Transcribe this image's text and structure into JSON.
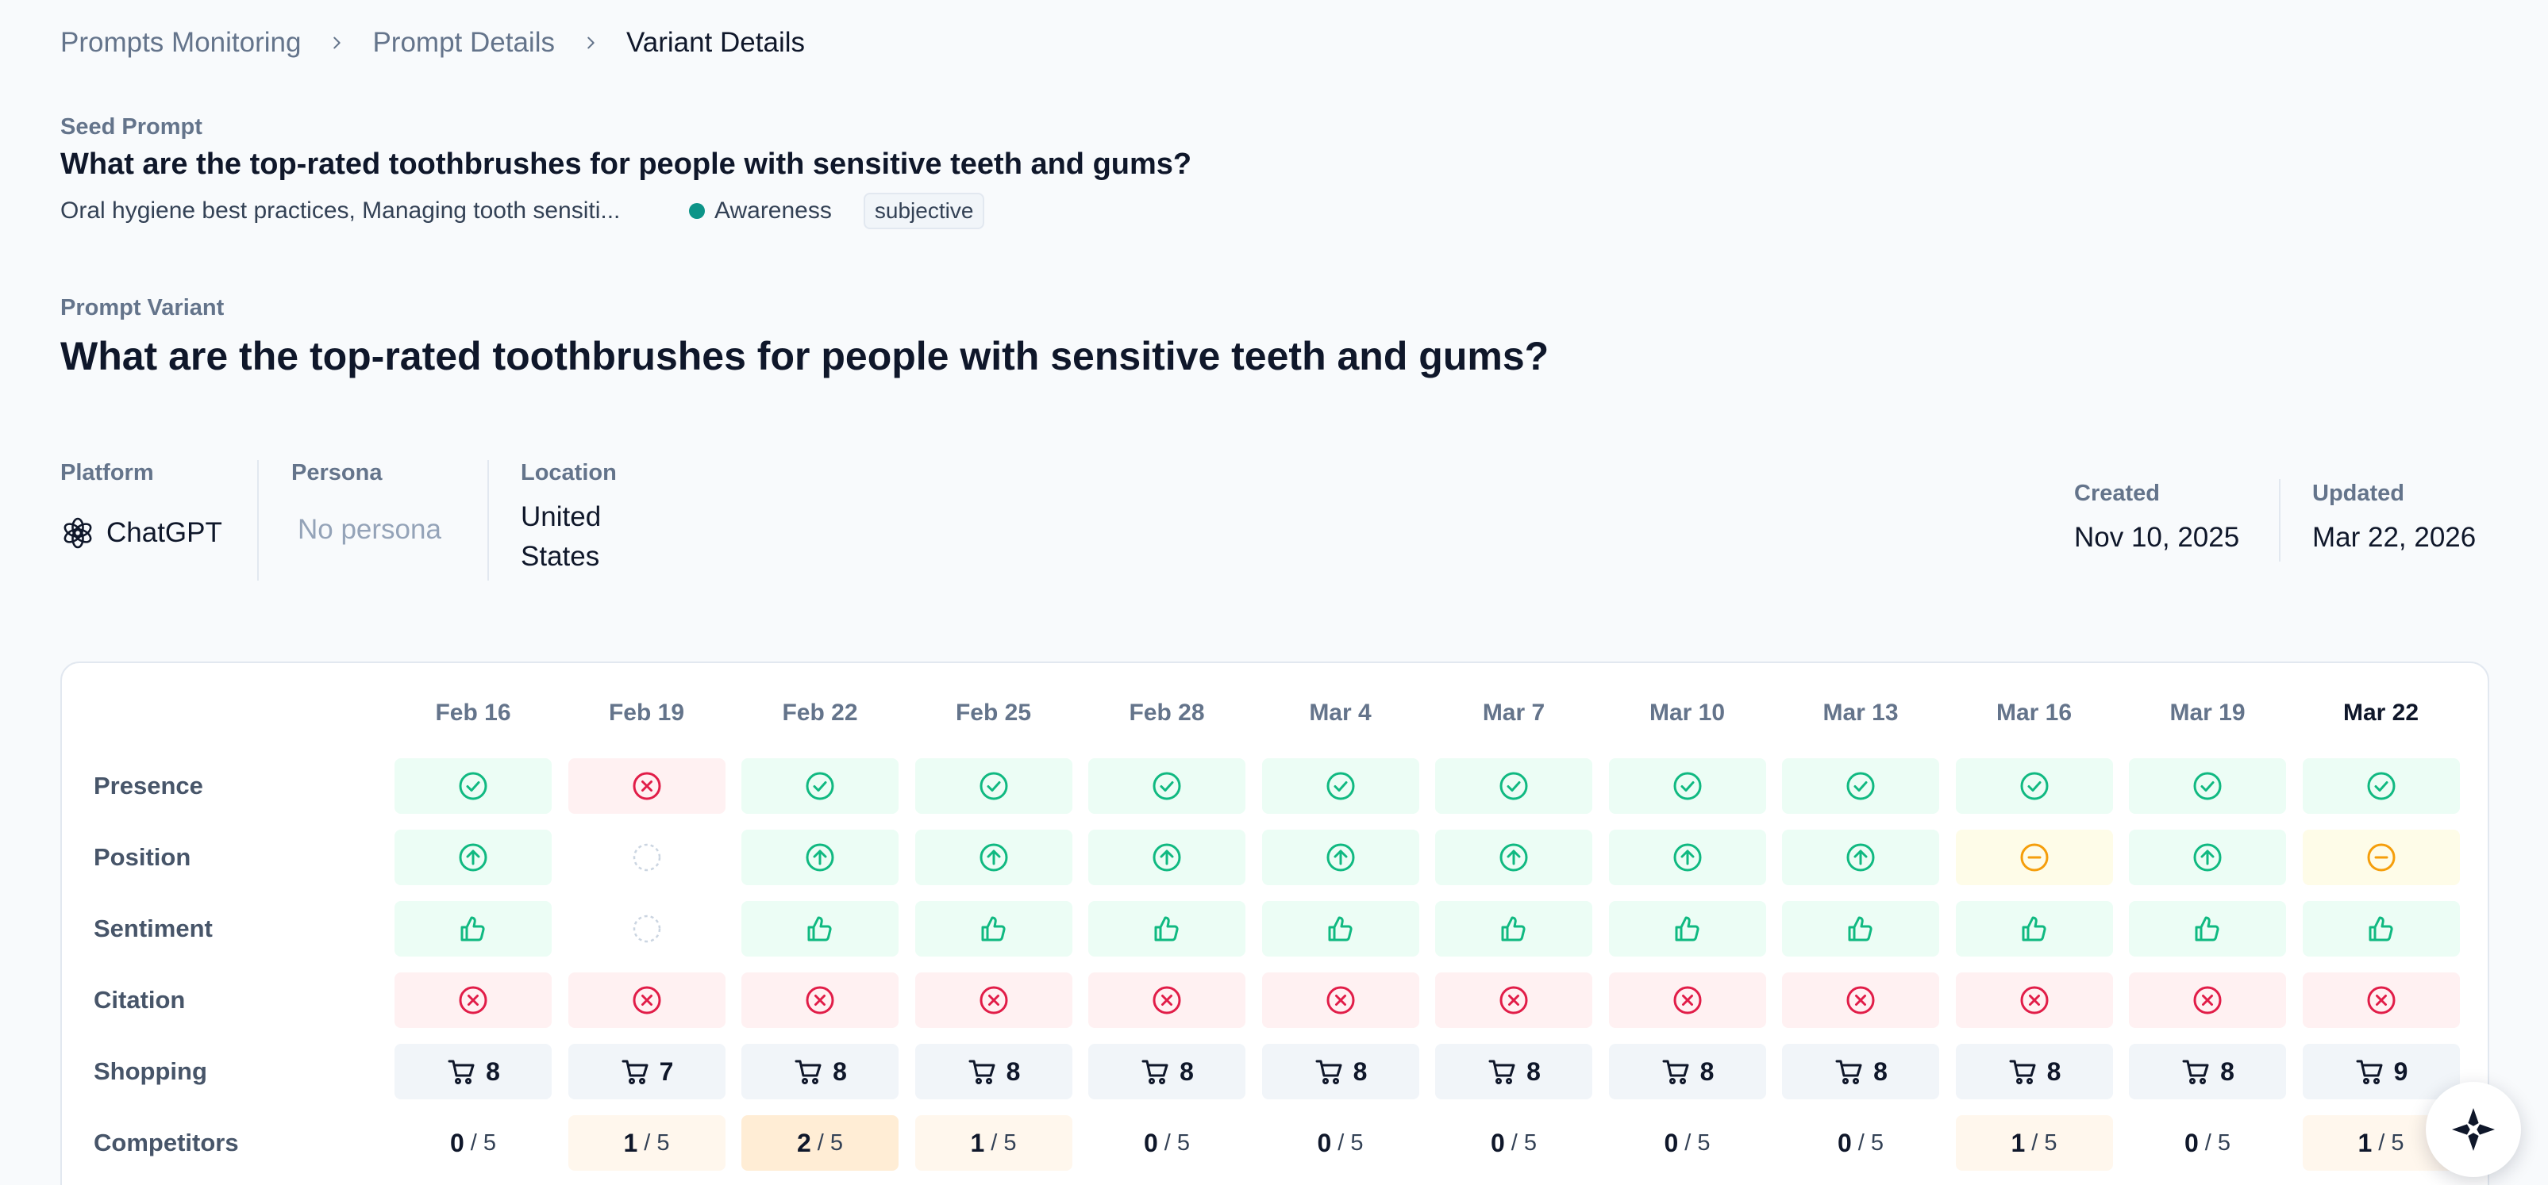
{
  "breadcrumb": {
    "items": [
      "Prompts Monitoring",
      "Prompt Details",
      "Variant Details"
    ]
  },
  "seed": {
    "label": "Seed Prompt",
    "title": "What are the top-rated toothbrushes for people with sensitive teeth and gums?",
    "topics": "Oral hygiene best practices, Managing tooth sensiti...",
    "stage": "Awareness",
    "stage_color": "#0d9488",
    "tag": "subjective"
  },
  "variant": {
    "label": "Prompt Variant",
    "title": "What are the top-rated toothbrushes for people with sensitive teeth and gums?"
  },
  "meta": {
    "platform_label": "Platform",
    "platform_value": "ChatGPT",
    "persona_label": "Persona",
    "persona_value": "No persona",
    "location_label": "Location",
    "location_line1": "United",
    "location_line2": "States",
    "created_label": "Created",
    "created_value": "Nov 10, 2025",
    "updated_label": "Updated",
    "updated_value": "Mar 22, 2026"
  },
  "grid": {
    "dates": [
      "Feb 16",
      "Feb 19",
      "Feb 22",
      "Feb 25",
      "Feb 28",
      "Mar 4",
      "Mar 7",
      "Mar 10",
      "Mar 13",
      "Mar 16",
      "Mar 19",
      "Mar 22"
    ],
    "current_index": 11,
    "rows": {
      "presence": "Presence",
      "position": "Position",
      "sentiment": "Sentiment",
      "citation": "Citation",
      "shopping": "Shopping",
      "competitors": "Competitors"
    },
    "presence": [
      "check",
      "x",
      "check",
      "check",
      "check",
      "check",
      "check",
      "check",
      "check",
      "check",
      "check",
      "check"
    ],
    "position": [
      "up",
      "none",
      "up",
      "up",
      "up",
      "up",
      "up",
      "up",
      "up",
      "neutral",
      "up",
      "neutral"
    ],
    "sentiment": [
      "thumb",
      "none",
      "thumb",
      "thumb",
      "thumb",
      "thumb",
      "thumb",
      "thumb",
      "thumb",
      "thumb",
      "thumb",
      "thumb"
    ],
    "citation": [
      "x",
      "x",
      "x",
      "x",
      "x",
      "x",
      "x",
      "x",
      "x",
      "x",
      "x",
      "x"
    ],
    "shopping": [
      "8",
      "7",
      "8",
      "8",
      "8",
      "8",
      "8",
      "8",
      "8",
      "8",
      "8",
      "9"
    ],
    "competitors": [
      "0",
      "1",
      "2",
      "1",
      "0",
      "0",
      "0",
      "0",
      "0",
      "1",
      "0",
      "1"
    ],
    "competitors_total": "/ 5"
  },
  "colors": {
    "good": "#10b981",
    "bad": "#e11d48",
    "neutral": "#f59e0b",
    "muted": "#cbd5e1"
  },
  "icons": {
    "platform": "chatgpt-logo-icon",
    "fab": "sparkle-icon"
  }
}
